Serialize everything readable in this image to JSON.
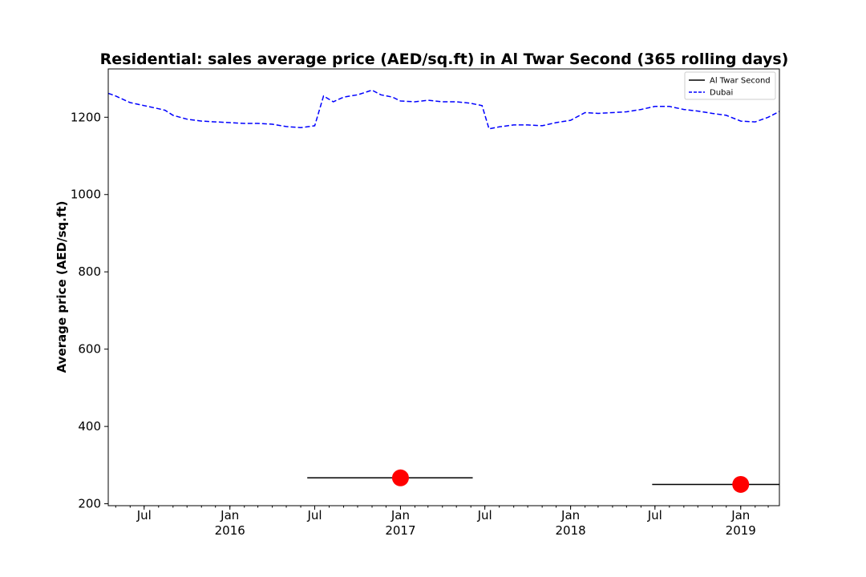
{
  "chart_data": {
    "type": "line",
    "title": "Residential: sales average price (AED/sq.ft) in Al Twar Second (365 rolling days)",
    "xlabel": "",
    "ylabel": "Average price (AED/sq.ft)",
    "xlim": [
      "2015-04-15",
      "2019-03-25"
    ],
    "ylim": [
      195,
      1325
    ],
    "y_ticks": [
      200,
      400,
      600,
      800,
      1000,
      1200
    ],
    "x_ticks": [
      {
        "date": "2015-07-01",
        "label": "Jul",
        "sublabel": ""
      },
      {
        "date": "2016-01-01",
        "label": "Jan",
        "sublabel": "2016"
      },
      {
        "date": "2016-07-01",
        "label": "Jul",
        "sublabel": ""
      },
      {
        "date": "2017-01-01",
        "label": "Jan",
        "sublabel": "2017"
      },
      {
        "date": "2017-07-01",
        "label": "Jul",
        "sublabel": ""
      },
      {
        "date": "2018-01-01",
        "label": "Jan",
        "sublabel": "2018"
      },
      {
        "date": "2018-07-01",
        "label": "Jul",
        "sublabel": ""
      },
      {
        "date": "2019-01-01",
        "label": "Jan",
        "sublabel": "2019"
      }
    ],
    "grid": false,
    "legend_position": "top-right",
    "series": [
      {
        "name": "Al Twar Second",
        "style": "solid",
        "color": "#000000",
        "segments": [
          {
            "start": "2016-06-15",
            "end": "2017-06-05",
            "y": 267,
            "marker_date": "2017-01-01",
            "marker_y": 267
          },
          {
            "start": "2018-06-25",
            "end": "2019-03-25",
            "y": 250,
            "marker_date": "2019-01-01",
            "marker_y": 250
          }
        ]
      },
      {
        "name": "Dubai",
        "style": "dashed",
        "color": "#0000ff",
        "x": [
          "2015-04-15",
          "2015-05-01",
          "2015-06-01",
          "2015-07-01",
          "2015-08-01",
          "2015-08-15",
          "2015-09-01",
          "2015-10-01",
          "2015-11-01",
          "2015-12-01",
          "2016-01-01",
          "2016-02-01",
          "2016-03-01",
          "2016-04-01",
          "2016-05-01",
          "2016-06-01",
          "2016-07-01",
          "2016-07-20",
          "2016-08-10",
          "2016-09-01",
          "2016-10-01",
          "2016-11-01",
          "2016-11-20",
          "2016-12-15",
          "2017-01-01",
          "2017-02-01",
          "2017-03-01",
          "2017-04-01",
          "2017-05-01",
          "2017-06-01",
          "2017-06-25",
          "2017-07-10",
          "2017-08-01",
          "2017-09-01",
          "2017-10-01",
          "2017-11-01",
          "2017-12-01",
          "2018-01-01",
          "2018-02-01",
          "2018-03-01",
          "2018-04-01",
          "2018-05-01",
          "2018-06-01",
          "2018-07-01",
          "2018-08-01",
          "2018-09-01",
          "2018-10-01",
          "2018-11-01",
          "2018-12-01",
          "2019-01-01",
          "2019-02-01",
          "2019-03-01",
          "2019-03-25"
        ],
        "values": [
          1262,
          1255,
          1238,
          1230,
          1222,
          1218,
          1205,
          1195,
          1190,
          1188,
          1186,
          1184,
          1184,
          1182,
          1176,
          1173,
          1178,
          1255,
          1240,
          1252,
          1258,
          1270,
          1258,
          1252,
          1242,
          1240,
          1244,
          1240,
          1240,
          1236,
          1230,
          1170,
          1175,
          1180,
          1180,
          1178,
          1186,
          1192,
          1212,
          1210,
          1212,
          1214,
          1220,
          1228,
          1228,
          1220,
          1216,
          1210,
          1205,
          1190,
          1188,
          1200,
          1215
        ]
      }
    ]
  }
}
